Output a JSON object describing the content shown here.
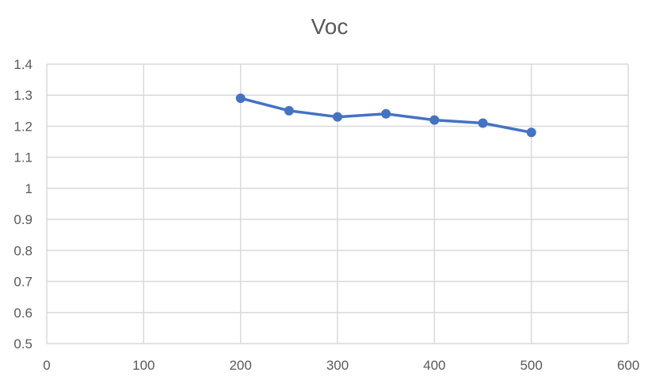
{
  "chart_data": {
    "type": "line",
    "title": "Voc",
    "xlabel": "",
    "ylabel": "",
    "xlim": [
      0,
      600
    ],
    "ylim": [
      0.5,
      1.4
    ],
    "x_ticks": [
      0,
      100,
      200,
      300,
      400,
      500,
      600
    ],
    "y_ticks": [
      0.5,
      0.6,
      0.7,
      0.8,
      0.9,
      1,
      1.1,
      1.2,
      1.3,
      1.4
    ],
    "x_tick_labels": [
      "0",
      "100",
      "200",
      "300",
      "400",
      "500",
      "600"
    ],
    "y_tick_labels": [
      "0.5",
      "0.6",
      "0.7",
      "0.8",
      "0.9",
      "1",
      "1.1",
      "1.2",
      "1.3",
      "1.4"
    ],
    "grid": true,
    "legend": "none",
    "series": [
      {
        "x": [
          200,
          250,
          300,
          350,
          400,
          450,
          500
        ],
        "y": [
          1.29,
          1.25,
          1.23,
          1.24,
          1.22,
          1.21,
          1.18
        ],
        "color": "#4472c4",
        "marker": "circle"
      }
    ]
  }
}
